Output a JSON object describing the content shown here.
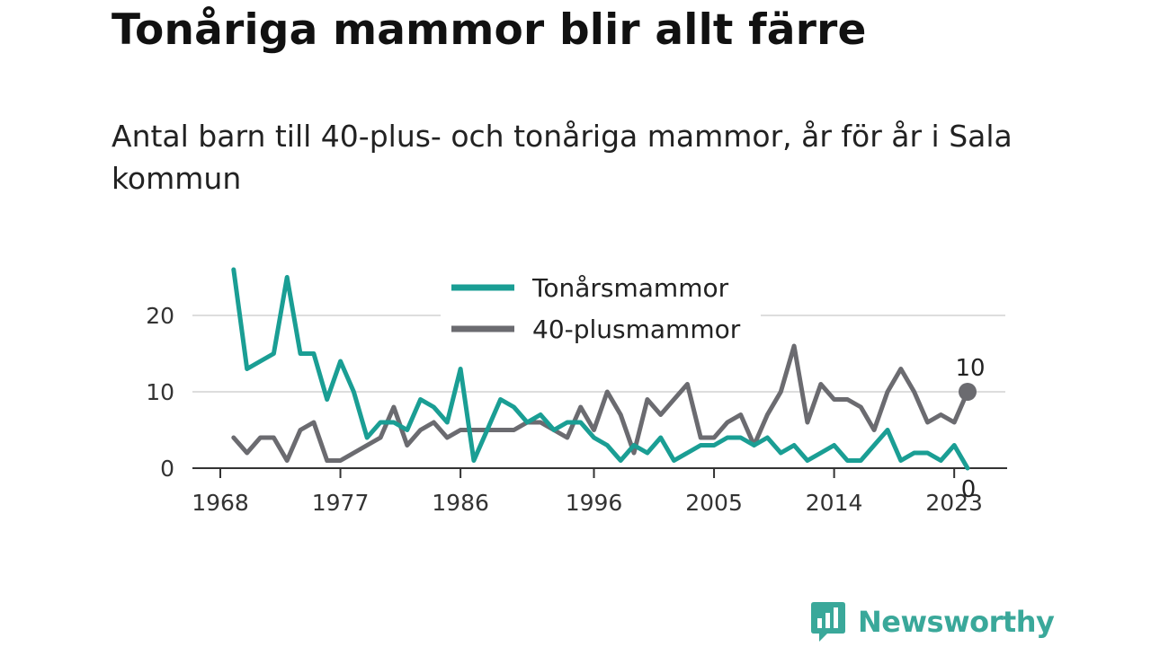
{
  "title": "Tonåriga mammor blir allt färre",
  "subtitle": "Antal barn till 40-plus- och tonåriga mammor, år för år i Sala kommun",
  "brand": {
    "name": "Newsworthy"
  },
  "chart_data": {
    "type": "line",
    "x": [
      1969,
      1970,
      1971,
      1972,
      1973,
      1974,
      1975,
      1976,
      1977,
      1978,
      1979,
      1980,
      1981,
      1982,
      1983,
      1984,
      1985,
      1986,
      1987,
      1988,
      1989,
      1990,
      1991,
      1992,
      1993,
      1994,
      1995,
      1996,
      1997,
      1998,
      1999,
      2000,
      2001,
      2002,
      2003,
      2004,
      2005,
      2006,
      2007,
      2008,
      2009,
      2010,
      2011,
      2012,
      2013,
      2014,
      2015,
      2016,
      2017,
      2018,
      2019,
      2020,
      2021,
      2022,
      2023,
      2024
    ],
    "series": [
      {
        "name": "Tonårsmammor",
        "color": "#1a9e94",
        "values": [
          26,
          13,
          14,
          15,
          25,
          15,
          15,
          9,
          14,
          10,
          4,
          6,
          6,
          5,
          9,
          8,
          6,
          13,
          1,
          5,
          9,
          8,
          6,
          7,
          5,
          6,
          6,
          4,
          3,
          1,
          3,
          2,
          4,
          1,
          2,
          3,
          3,
          4,
          4,
          3,
          4,
          2,
          3,
          1,
          2,
          3,
          1,
          1,
          3,
          5,
          1,
          2,
          2,
          1,
          3,
          0
        ]
      },
      {
        "name": "40-plusmammor",
        "color": "#6b6b70",
        "values": [
          4,
          2,
          4,
          4,
          1,
          5,
          6,
          1,
          1,
          2,
          3,
          4,
          8,
          3,
          5,
          6,
          4,
          5,
          5,
          5,
          5,
          5,
          6,
          6,
          5,
          4,
          8,
          5,
          10,
          7,
          2,
          9,
          7,
          9,
          11,
          4,
          4,
          6,
          7,
          3,
          7,
          10,
          16,
          6,
          11,
          9,
          9,
          8,
          5,
          10,
          13,
          10,
          6,
          7,
          6,
          10
        ]
      }
    ],
    "xticks": [
      1968,
      1977,
      1986,
      1996,
      2005,
      2014,
      2023
    ],
    "yticks": [
      0,
      10,
      20
    ],
    "ylim": [
      0,
      26
    ],
    "grid": true,
    "legend": "top",
    "end_labels": [
      {
        "series": "40-plusmammor",
        "text": "10"
      },
      {
        "series": "Tonårsmammor",
        "text": "0"
      }
    ]
  }
}
